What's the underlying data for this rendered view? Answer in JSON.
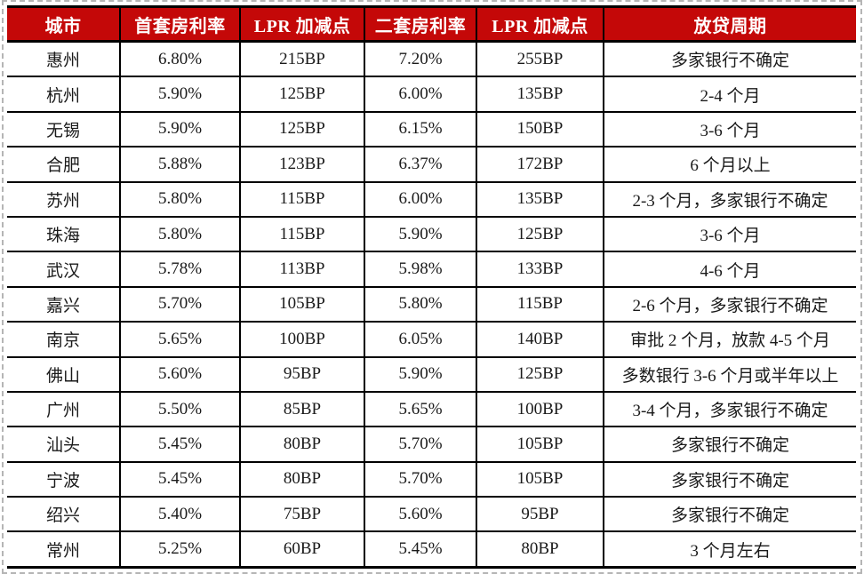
{
  "chart_data": {
    "type": "table",
    "columns": [
      "城市",
      "首套房利率",
      "LPR 加减点",
      "二套房利率",
      "LPR 加减点",
      "放贷周期"
    ],
    "rows": [
      [
        "惠州",
        "6.80%",
        "215BP",
        "7.20%",
        "255BP",
        "多家银行不确定"
      ],
      [
        "杭州",
        "5.90%",
        "125BP",
        "6.00%",
        "135BP",
        "2-4 个月"
      ],
      [
        "无锡",
        "5.90%",
        "125BP",
        "6.15%",
        "150BP",
        "3-6 个月"
      ],
      [
        "合肥",
        "5.88%",
        "123BP",
        "6.37%",
        "172BP",
        "6 个月以上"
      ],
      [
        "苏州",
        "5.80%",
        "115BP",
        "6.00%",
        "135BP",
        "2-3 个月，多家银行不确定"
      ],
      [
        "珠海",
        "5.80%",
        "115BP",
        "5.90%",
        "125BP",
        "3-6 个月"
      ],
      [
        "武汉",
        "5.78%",
        "113BP",
        "5.98%",
        "133BP",
        "4-6 个月"
      ],
      [
        "嘉兴",
        "5.70%",
        "105BP",
        "5.80%",
        "115BP",
        "2-6 个月，多家银行不确定"
      ],
      [
        "南京",
        "5.65%",
        "100BP",
        "6.05%",
        "140BP",
        "审批 2 个月，放款 4-5 个月"
      ],
      [
        "佛山",
        "5.60%",
        "95BP",
        "5.90%",
        "125BP",
        "多数银行 3-6 个月或半年以上"
      ],
      [
        "广州",
        "5.50%",
        "85BP",
        "5.65%",
        "100BP",
        "3-4 个月，多家银行不确定"
      ],
      [
        "汕头",
        "5.45%",
        "80BP",
        "5.70%",
        "105BP",
        "多家银行不确定"
      ],
      [
        "宁波",
        "5.45%",
        "80BP",
        "5.70%",
        "105BP",
        "多家银行不确定"
      ],
      [
        "绍兴",
        "5.40%",
        "75BP",
        "5.60%",
        "95BP",
        "多家银行不确定"
      ],
      [
        "常州",
        "5.25%",
        "60BP",
        "5.45%",
        "80BP",
        "3 个月左右"
      ]
    ]
  },
  "colors": {
    "header_bg": "#C40808",
    "header_text": "#FFFFFF",
    "body_text": "#1A1A1A",
    "grid_line": "#000000",
    "dashed_border": "#B5B5B5"
  }
}
